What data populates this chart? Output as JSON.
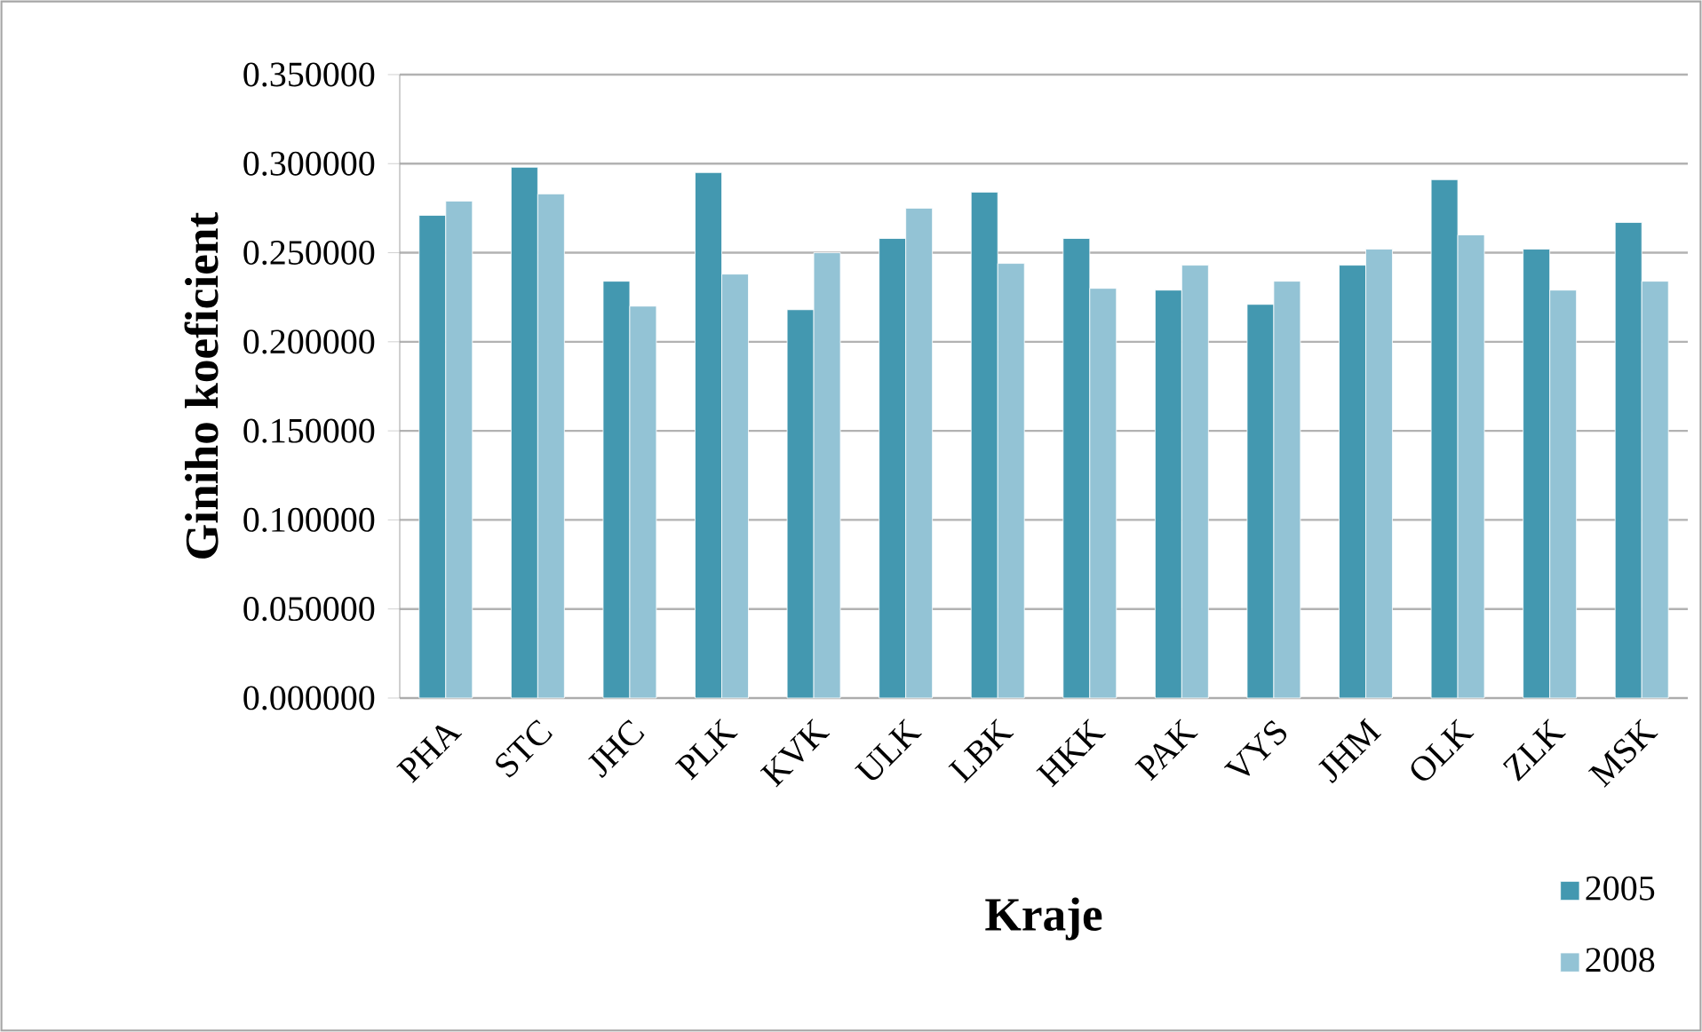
{
  "chart_data": {
    "type": "bar",
    "xlabel": "Kraje",
    "ylabel": "Giniho koeficient",
    "categories": [
      "PHA",
      "STC",
      "JHC",
      "PLK",
      "KVK",
      "ULK",
      "LBK",
      "HKK",
      "PAK",
      "VYS",
      "JHM",
      "OLK",
      "ZLK",
      "MSK"
    ],
    "series": [
      {
        "name": "2005",
        "color": "#4398b0",
        "values": [
          0.271,
          0.298,
          0.234,
          0.295,
          0.218,
          0.258,
          0.284,
          0.258,
          0.229,
          0.221,
          0.243,
          0.291,
          0.252,
          0.267
        ]
      },
      {
        "name": "2008",
        "color": "#93c3d5",
        "values": [
          0.279,
          0.283,
          0.22,
          0.238,
          0.25,
          0.275,
          0.244,
          0.23,
          0.243,
          0.234,
          0.252,
          0.26,
          0.229,
          0.234
        ]
      }
    ],
    "ylim": [
      0,
      0.35
    ],
    "yticks": [
      {
        "value": 0,
        "label": "0.000000"
      },
      {
        "value": 0.05,
        "label": "0.050000"
      },
      {
        "value": 0.1,
        "label": "0.100000"
      },
      {
        "value": 0.15,
        "label": "0.150000"
      },
      {
        "value": 0.2,
        "label": "0.200000"
      },
      {
        "value": 0.25,
        "label": "0.250000"
      },
      {
        "value": 0.3,
        "label": "0.300000"
      },
      {
        "value": 0.35,
        "label": "0.350000"
      }
    ],
    "grid": "y",
    "legend": "bottom right"
  }
}
